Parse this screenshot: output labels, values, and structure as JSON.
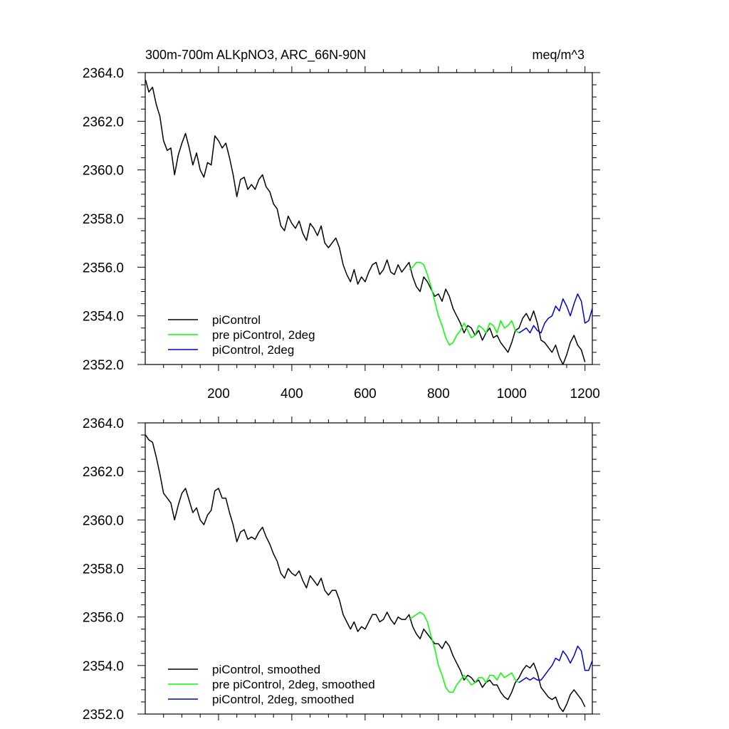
{
  "chart_data": [
    {
      "type": "line",
      "title": "300m-700m ALKpNO3, ARC_66N-90N",
      "units": "meq/m^3",
      "xlim": [
        0,
        1220
      ],
      "ylim": [
        2352.0,
        2364.0
      ],
      "x_ticks": [
        200,
        400,
        600,
        800,
        1000,
        1200
      ],
      "x_tick_labels": [
        "200",
        "400",
        "600",
        "800",
        "1000",
        "1200"
      ],
      "y_ticks": [
        2352.0,
        2354.0,
        2356.0,
        2358.0,
        2360.0,
        2362.0,
        2364.0
      ],
      "y_tick_labels": [
        "2352.0",
        "2354.0",
        "2356.0",
        "2358.0",
        "2360.0",
        "2362.0",
        "2364.0"
      ],
      "legend_position": "bottom-left",
      "series": [
        {
          "name": "piControl",
          "color": "#000000",
          "x": [
            1,
            10,
            20,
            30,
            40,
            50,
            60,
            70,
            80,
            90,
            100,
            110,
            120,
            130,
            140,
            150,
            160,
            170,
            180,
            190,
            200,
            210,
            220,
            230,
            240,
            250,
            260,
            270,
            280,
            290,
            300,
            310,
            320,
            330,
            340,
            350,
            360,
            370,
            380,
            390,
            400,
            410,
            420,
            430,
            440,
            450,
            460,
            470,
            480,
            490,
            500,
            510,
            520,
            530,
            540,
            550,
            560,
            570,
            580,
            590,
            600,
            610,
            620,
            630,
            640,
            650,
            660,
            670,
            680,
            690,
            700,
            710,
            720,
            730,
            740,
            750,
            760,
            770,
            780,
            790,
            800,
            810,
            820,
            830,
            840,
            850,
            860,
            870,
            880,
            890,
            900,
            910,
            920,
            930,
            940,
            950,
            960,
            970,
            980,
            990,
            1000,
            1010,
            1020,
            1030,
            1040,
            1050,
            1060,
            1070,
            1080,
            1090,
            1100,
            1110,
            1120,
            1130,
            1140,
            1150,
            1160,
            1170,
            1180,
            1190,
            1200
          ],
          "y": [
            2363.7,
            2363.2,
            2363.4,
            2362.7,
            2362.2,
            2361.2,
            2360.8,
            2360.9,
            2359.8,
            2360.6,
            2361.1,
            2361.5,
            2360.9,
            2360.2,
            2360.7,
            2360.0,
            2359.7,
            2360.3,
            2360.2,
            2361.4,
            2361.2,
            2360.9,
            2361.1,
            2360.5,
            2359.8,
            2358.9,
            2359.6,
            2359.7,
            2359.2,
            2359.4,
            2359.2,
            2359.6,
            2359.8,
            2359.3,
            2359.1,
            2358.6,
            2358.4,
            2357.7,
            2357.5,
            2358.1,
            2357.8,
            2357.6,
            2357.9,
            2357.4,
            2357.1,
            2357.8,
            2357.6,
            2357.3,
            2357.7,
            2357.0,
            2356.8,
            2357.0,
            2357.2,
            2356.8,
            2356.1,
            2355.7,
            2355.4,
            2355.9,
            2355.3,
            2355.6,
            2355.4,
            2355.8,
            2356.1,
            2356.2,
            2355.7,
            2355.9,
            2356.3,
            2355.8,
            2355.7,
            2356.1,
            2355.8,
            2356.0,
            2356.2,
            2355.6,
            2355.2,
            2355.0,
            2355.6,
            2355.4,
            2355.1,
            2354.8,
            2354.9,
            2354.6,
            2355.1,
            2354.8,
            2354.3,
            2354.0,
            2353.7,
            2353.3,
            2353.6,
            2353.5,
            2353.2,
            2353.4,
            2353.0,
            2353.3,
            2353.5,
            2353.1,
            2353.2,
            2352.9,
            2352.7,
            2352.5,
            2352.9,
            2353.4,
            2353.5,
            2353.9,
            2354.1,
            2353.8,
            2354.2,
            2353.7,
            2353.0,
            2352.9,
            2352.7,
            2352.5,
            2352.8,
            2352.3,
            2352.0,
            2352.4,
            2352.9,
            2353.2,
            2352.8,
            2352.6,
            2352.1
          ]
        },
        {
          "name": "pre piControl, 2deg",
          "color": "#00ff00",
          "x": [
            720,
            730,
            740,
            750,
            760,
            770,
            780,
            790,
            800,
            810,
            820,
            830,
            840,
            850,
            860,
            870,
            880,
            890,
            900,
            910,
            920,
            930,
            940,
            950,
            960,
            970,
            980,
            990,
            1000,
            1010,
            1020
          ],
          "y": [
            2355.9,
            2356.0,
            2356.2,
            2356.2,
            2356.1,
            2355.7,
            2355.2,
            2354.6,
            2354.0,
            2353.6,
            2353.1,
            2352.8,
            2352.9,
            2353.2,
            2353.4,
            2353.7,
            2353.4,
            2353.1,
            2353.2,
            2353.6,
            2353.5,
            2353.3,
            2353.7,
            2353.6,
            2353.3,
            2353.8,
            2353.5,
            2353.6,
            2353.8,
            2353.4,
            2353.3
          ]
        },
        {
          "name": "piControl, 2deg",
          "color": "#0000cd",
          "x": [
            1020,
            1030,
            1040,
            1050,
            1060,
            1070,
            1080,
            1090,
            1100,
            1110,
            1120,
            1130,
            1140,
            1150,
            1160,
            1170,
            1180,
            1190,
            1200,
            1210,
            1220
          ],
          "y": [
            2353.3,
            2353.4,
            2353.5,
            2353.3,
            2353.6,
            2353.4,
            2353.3,
            2353.7,
            2353.9,
            2354.0,
            2354.4,
            2354.2,
            2354.7,
            2354.4,
            2354.0,
            2354.5,
            2354.9,
            2354.6,
            2353.7,
            2353.8,
            2354.3
          ]
        }
      ]
    },
    {
      "type": "line",
      "title": "",
      "xlim": [
        0,
        1220
      ],
      "ylim": [
        2352.0,
        2364.0
      ],
      "y_ticks": [
        2352.0,
        2354.0,
        2356.0,
        2358.0,
        2360.0,
        2362.0,
        2364.0
      ],
      "y_tick_labels": [
        "2352.0",
        "2354.0",
        "2356.0",
        "2358.0",
        "2360.0",
        "2362.0",
        "2364.0"
      ],
      "legend_position": "bottom-left",
      "series": [
        {
          "name": "piControl, smoothed",
          "color": "#000000",
          "x": [
            1,
            10,
            20,
            30,
            40,
            50,
            60,
            70,
            80,
            90,
            100,
            110,
            120,
            130,
            140,
            150,
            160,
            170,
            180,
            190,
            200,
            210,
            220,
            230,
            240,
            250,
            260,
            270,
            280,
            290,
            300,
            310,
            320,
            330,
            340,
            350,
            360,
            370,
            380,
            390,
            400,
            410,
            420,
            430,
            440,
            450,
            460,
            470,
            480,
            490,
            500,
            510,
            520,
            530,
            540,
            550,
            560,
            570,
            580,
            590,
            600,
            610,
            620,
            630,
            640,
            650,
            660,
            670,
            680,
            690,
            700,
            710,
            720,
            730,
            740,
            750,
            760,
            770,
            780,
            790,
            800,
            810,
            820,
            830,
            840,
            850,
            860,
            870,
            880,
            890,
            900,
            910,
            920,
            930,
            940,
            950,
            960,
            970,
            980,
            990,
            1000,
            1010,
            1020,
            1030,
            1040,
            1050,
            1060,
            1070,
            1080,
            1090,
            1100,
            1110,
            1120,
            1130,
            1140,
            1150,
            1160,
            1170,
            1180,
            1190,
            1200
          ],
          "y": [
            2363.5,
            2363.3,
            2363.2,
            2362.6,
            2361.9,
            2361.1,
            2360.9,
            2360.7,
            2360.0,
            2360.6,
            2361.1,
            2361.3,
            2360.8,
            2360.3,
            2360.5,
            2360.0,
            2359.8,
            2360.2,
            2360.4,
            2361.2,
            2361.3,
            2360.9,
            2360.9,
            2360.3,
            2359.8,
            2359.1,
            2359.5,
            2359.6,
            2359.2,
            2359.3,
            2359.2,
            2359.5,
            2359.7,
            2359.3,
            2359.0,
            2358.6,
            2358.3,
            2357.8,
            2357.6,
            2358.0,
            2357.8,
            2357.7,
            2357.9,
            2357.5,
            2357.2,
            2357.7,
            2357.5,
            2357.3,
            2357.6,
            2357.1,
            2356.9,
            2357.1,
            2357.1,
            2356.7,
            2356.1,
            2355.8,
            2355.5,
            2355.8,
            2355.4,
            2355.6,
            2355.5,
            2355.8,
            2356.1,
            2356.1,
            2355.8,
            2355.9,
            2356.2,
            2355.9,
            2355.7,
            2356.0,
            2355.9,
            2355.9,
            2356.1,
            2355.6,
            2355.3,
            2355.1,
            2355.5,
            2355.3,
            2355.1,
            2354.9,
            2354.9,
            2354.7,
            2355.0,
            2354.8,
            2354.4,
            2354.1,
            2353.8,
            2353.4,
            2353.6,
            2353.5,
            2353.3,
            2353.4,
            2353.1,
            2353.3,
            2353.4,
            2353.2,
            2353.2,
            2352.9,
            2352.7,
            2352.6,
            2352.9,
            2353.3,
            2353.5,
            2353.8,
            2354.0,
            2353.9,
            2354.1,
            2353.7,
            2353.1,
            2352.9,
            2352.7,
            2352.6,
            2352.7,
            2352.3,
            2352.1,
            2352.4,
            2352.8,
            2353.0,
            2352.8,
            2352.6,
            2352.3
          ]
        },
        {
          "name": "pre piControl, 2deg, smoothed",
          "color": "#00ff00",
          "x": [
            720,
            730,
            740,
            750,
            760,
            770,
            780,
            790,
            800,
            810,
            820,
            830,
            840,
            850,
            860,
            870,
            880,
            890,
            900,
            910,
            920,
            930,
            940,
            950,
            960,
            970,
            980,
            990,
            1000,
            1010,
            1020
          ],
          "y": [
            2355.9,
            2356.0,
            2356.1,
            2356.2,
            2356.1,
            2355.8,
            2355.2,
            2354.7,
            2354.0,
            2353.6,
            2353.1,
            2352.9,
            2352.9,
            2353.2,
            2353.4,
            2353.6,
            2353.4,
            2353.2,
            2353.3,
            2353.5,
            2353.5,
            2353.3,
            2353.6,
            2353.6,
            2353.4,
            2353.7,
            2353.5,
            2353.6,
            2353.7,
            2353.4,
            2353.3
          ]
        },
        {
          "name": "piControl, 2deg, smoothed",
          "color": "#0000cd",
          "x": [
            1020,
            1030,
            1040,
            1050,
            1060,
            1070,
            1080,
            1090,
            1100,
            1110,
            1120,
            1130,
            1140,
            1150,
            1160,
            1170,
            1180,
            1190,
            1200,
            1210,
            1220
          ],
          "y": [
            2353.3,
            2353.4,
            2353.5,
            2353.4,
            2353.5,
            2353.4,
            2353.4,
            2353.6,
            2353.8,
            2354.0,
            2354.3,
            2354.2,
            2354.6,
            2354.4,
            2354.1,
            2354.4,
            2354.8,
            2354.6,
            2353.8,
            2353.8,
            2354.2
          ]
        }
      ]
    }
  ]
}
